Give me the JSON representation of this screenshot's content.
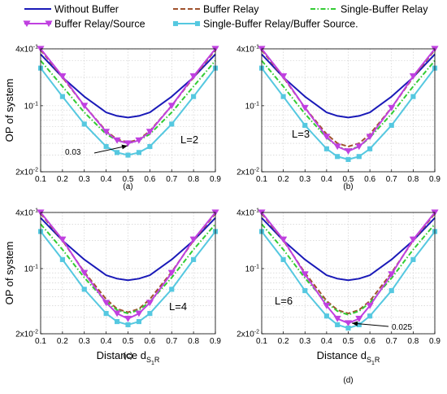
{
  "figure": {
    "legend": [
      {
        "name": "Without Buffer",
        "color": "#1a1ab8",
        "style": "solid",
        "marker": "none"
      },
      {
        "name": "Buffer Relay",
        "color": "#a0522d",
        "style": "dashed",
        "marker": "none"
      },
      {
        "name": "Single-Buffer Relay",
        "color": "#33cc33",
        "style": "dashdot",
        "marker": "none"
      },
      {
        "name": "Buffer Relay/Source",
        "color": "#c040e0",
        "style": "solid",
        "marker": "triangle-down"
      },
      {
        "name": "Single-Buffer Relay/Buffer Source.",
        "color": "#55c8e0",
        "style": "solid",
        "marker": "square"
      }
    ]
  },
  "chart_data": [
    {
      "type": "line",
      "panel_label": "(a)",
      "annotation": "L=2",
      "arrow_text": "0.03",
      "xlabel": "",
      "ylabel": "OP of system",
      "x": [
        0.1,
        0.2,
        0.3,
        0.4,
        0.45,
        0.5,
        0.55,
        0.6,
        0.7,
        0.8,
        0.9
      ],
      "xticks": [
        "0.1",
        "0.2",
        "0.3",
        "0.4",
        "0.5",
        "0.6",
        "0.7",
        "0.8",
        "0.9"
      ],
      "yticks": [
        "4x10",
        "10",
        "2x10"
      ],
      "ytick_exp": [
        "-1",
        "-1",
        "-2"
      ],
      "xlim": [
        0.1,
        0.9
      ],
      "ylim": [
        0.02,
        0.4
      ],
      "yscale": "log",
      "grid": true,
      "series": [
        {
          "name": "Without Buffer",
          "values": [
            0.35,
            0.2,
            0.125,
            0.085,
            0.078,
            0.075,
            0.078,
            0.085,
            0.125,
            0.2,
            0.35
          ]
        },
        {
          "name": "Buffer Relay",
          "values": [
            0.39,
            0.2,
            0.1,
            0.054,
            0.044,
            0.041,
            0.044,
            0.054,
            0.1,
            0.2,
            0.39
          ]
        },
        {
          "name": "Single-Buffer Relay",
          "values": [
            0.3,
            0.16,
            0.085,
            0.05,
            0.043,
            0.04,
            0.043,
            0.05,
            0.085,
            0.16,
            0.3
          ]
        },
        {
          "name": "Buffer Relay/Source",
          "values": [
            0.4,
            0.205,
            0.1,
            0.053,
            0.043,
            0.04,
            0.043,
            0.053,
            0.1,
            0.205,
            0.4
          ]
        },
        {
          "name": "Single-Buffer Relay/Buffer Source.",
          "values": [
            0.25,
            0.125,
            0.064,
            0.037,
            0.032,
            0.03,
            0.032,
            0.037,
            0.064,
            0.125,
            0.25
          ]
        }
      ]
    },
    {
      "type": "line",
      "panel_label": "(b)",
      "annotation": "L=3",
      "xlabel": "",
      "ylabel": "",
      "x": [
        0.1,
        0.2,
        0.3,
        0.4,
        0.45,
        0.5,
        0.55,
        0.6,
        0.7,
        0.8,
        0.9
      ],
      "xticks": [
        "0.1",
        "0.2",
        "0.3",
        "0.4",
        "0.5",
        "0.6",
        "0.7",
        "0.8",
        "0.9"
      ],
      "yticks": [
        "4x10",
        "10",
        "2x10"
      ],
      "ytick_exp": [
        "-1",
        "-1",
        "-2"
      ],
      "xlim": [
        0.1,
        0.9
      ],
      "ylim": [
        0.02,
        0.4
      ],
      "yscale": "log",
      "grid": true,
      "series": [
        {
          "name": "Without Buffer",
          "values": [
            0.35,
            0.2,
            0.125,
            0.085,
            0.078,
            0.075,
            0.078,
            0.085,
            0.125,
            0.2,
            0.35
          ]
        },
        {
          "name": "Buffer Relay",
          "values": [
            0.39,
            0.2,
            0.095,
            0.05,
            0.04,
            0.037,
            0.04,
            0.05,
            0.095,
            0.2,
            0.39
          ]
        },
        {
          "name": "Single-Buffer Relay",
          "values": [
            0.3,
            0.16,
            0.082,
            0.046,
            0.037,
            0.034,
            0.037,
            0.046,
            0.082,
            0.16,
            0.3
          ]
        },
        {
          "name": "Buffer Relay/Source",
          "values": [
            0.4,
            0.205,
            0.095,
            0.047,
            0.037,
            0.033,
            0.037,
            0.047,
            0.095,
            0.205,
            0.4
          ]
        },
        {
          "name": "Single-Buffer Relay/Buffer Source.",
          "values": [
            0.25,
            0.125,
            0.062,
            0.035,
            0.029,
            0.027,
            0.029,
            0.035,
            0.062,
            0.125,
            0.25
          ]
        }
      ]
    },
    {
      "type": "line",
      "panel_label": "(c)",
      "annotation": "L=4",
      "xlabel": "Distance d",
      "xlabel_sub": "S",
      "xlabel_subsub": "1",
      "xlabel_tail": "R",
      "ylabel": "OP of system",
      "x": [
        0.1,
        0.2,
        0.3,
        0.4,
        0.45,
        0.5,
        0.55,
        0.6,
        0.7,
        0.8,
        0.9
      ],
      "xticks": [
        "0.1",
        "0.2",
        "0.3",
        "0.4",
        "0.5",
        "0.6",
        "0.7",
        "0.8",
        "0.9"
      ],
      "yticks": [
        "4x10",
        "10",
        "2x10"
      ],
      "ytick_exp": [
        "-1",
        "-1",
        "-2"
      ],
      "xlim": [
        0.1,
        0.9
      ],
      "ylim": [
        0.02,
        0.4
      ],
      "yscale": "log",
      "grid": true,
      "series": [
        {
          "name": "Without Buffer",
          "values": [
            0.35,
            0.2,
            0.125,
            0.085,
            0.078,
            0.075,
            0.078,
            0.085,
            0.125,
            0.2,
            0.35
          ]
        },
        {
          "name": "Buffer Relay",
          "values": [
            0.39,
            0.2,
            0.092,
            0.047,
            0.037,
            0.034,
            0.037,
            0.047,
            0.092,
            0.2,
            0.39
          ]
        },
        {
          "name": "Single-Buffer Relay",
          "values": [
            0.3,
            0.16,
            0.08,
            0.044,
            0.036,
            0.033,
            0.036,
            0.044,
            0.08,
            0.16,
            0.3
          ]
        },
        {
          "name": "Buffer Relay/Source",
          "values": [
            0.4,
            0.205,
            0.09,
            0.043,
            0.033,
            0.029,
            0.033,
            0.043,
            0.09,
            0.205,
            0.4
          ]
        },
        {
          "name": "Single-Buffer Relay/Buffer Source.",
          "values": [
            0.25,
            0.125,
            0.06,
            0.033,
            0.027,
            0.025,
            0.027,
            0.033,
            0.06,
            0.125,
            0.25
          ]
        }
      ]
    },
    {
      "type": "line",
      "panel_label": "(d)",
      "annotation": "L=6",
      "arrow_text": "0.025",
      "xlabel": "Distance d",
      "xlabel_sub": "S",
      "xlabel_subsub": "1",
      "xlabel_tail": "R",
      "ylabel": "",
      "x": [
        0.1,
        0.2,
        0.3,
        0.4,
        0.45,
        0.5,
        0.55,
        0.6,
        0.7,
        0.8,
        0.9
      ],
      "xticks": [
        "0.1",
        "0.2",
        "0.3",
        "0.4",
        "0.5",
        "0.6",
        "0.7",
        "0.8",
        "0.9"
      ],
      "yticks": [
        "4x10",
        "10",
        "2x10"
      ],
      "ytick_exp": [
        "-1",
        "-1",
        "-2"
      ],
      "xlim": [
        0.1,
        0.9
      ],
      "ylim": [
        0.02,
        0.4
      ],
      "yscale": "log",
      "grid": true,
      "series": [
        {
          "name": "Without Buffer",
          "values": [
            0.35,
            0.2,
            0.125,
            0.085,
            0.078,
            0.075,
            0.078,
            0.085,
            0.125,
            0.2,
            0.35
          ]
        },
        {
          "name": "Buffer Relay",
          "values": [
            0.39,
            0.2,
            0.09,
            0.045,
            0.036,
            0.033,
            0.036,
            0.045,
            0.09,
            0.2,
            0.39
          ]
        },
        {
          "name": "Single-Buffer Relay",
          "values": [
            0.3,
            0.16,
            0.079,
            0.043,
            0.035,
            0.032,
            0.035,
            0.043,
            0.079,
            0.16,
            0.3
          ]
        },
        {
          "name": "Buffer Relay/Source",
          "values": [
            0.4,
            0.205,
            0.087,
            0.04,
            0.029,
            0.026,
            0.029,
            0.04,
            0.087,
            0.205,
            0.4
          ]
        },
        {
          "name": "Single-Buffer Relay/Buffer Source.",
          "values": [
            0.25,
            0.125,
            0.058,
            0.031,
            0.025,
            0.023,
            0.025,
            0.031,
            0.058,
            0.125,
            0.25
          ]
        }
      ]
    }
  ]
}
